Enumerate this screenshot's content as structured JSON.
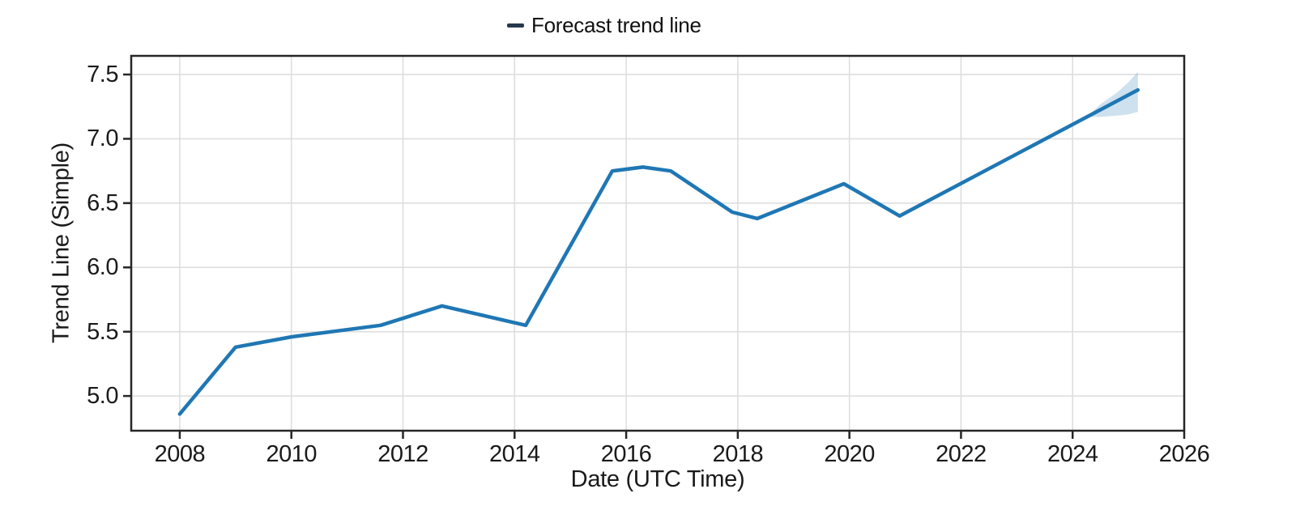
{
  "chart_data": {
    "type": "line",
    "title": "",
    "xlabel": "Date (UTC Time)",
    "ylabel": "Trend Line (Simple)",
    "legend": {
      "label": "Forecast trend line",
      "position": "top-center",
      "marker_color": "#24384e"
    },
    "xlim": [
      2007.13,
      2026
    ],
    "ylim": [
      4.73,
      7.645
    ],
    "xtick_labels": [
      "2008",
      "2010",
      "2012",
      "2014",
      "2016",
      "2018",
      "2020",
      "2022",
      "2024",
      "2026"
    ],
    "ytick_labels": [
      "5.0",
      "5.5",
      "6.0",
      "6.5",
      "7.0",
      "7.5"
    ],
    "grid": true,
    "series": [
      {
        "name": "Forecast trend line",
        "color": "#1f77b4",
        "line_width": 4.5,
        "points": [
          [
            2008.0,
            4.86
          ],
          [
            2009.0,
            5.38
          ],
          [
            2010.0,
            5.46
          ],
          [
            2011.6,
            5.55
          ],
          [
            2012.7,
            5.7
          ],
          [
            2014.2,
            5.55
          ],
          [
            2015.75,
            6.75
          ],
          [
            2016.3,
            6.78
          ],
          [
            2016.8,
            6.75
          ],
          [
            2017.9,
            6.43
          ],
          [
            2018.35,
            6.38
          ],
          [
            2019.9,
            6.65
          ],
          [
            2020.9,
            6.4
          ],
          [
            2025.17,
            7.38
          ]
        ]
      }
    ],
    "confidence_band": {
      "color": "#1f77b4",
      "opacity": 0.22,
      "upper": [
        [
          2024.25,
          7.17
        ],
        [
          2024.5,
          7.27
        ],
        [
          2024.8,
          7.36
        ],
        [
          2025.0,
          7.44
        ],
        [
          2025.17,
          7.52
        ]
      ],
      "lower": [
        [
          2024.25,
          7.17
        ],
        [
          2024.5,
          7.17
        ],
        [
          2024.8,
          7.18
        ],
        [
          2025.0,
          7.19
        ],
        [
          2025.17,
          7.21
        ]
      ]
    },
    "colors": {
      "grid": "#dcdcdc",
      "spine": "#262626",
      "tick": "#262626",
      "text": "#1a1a1a",
      "background": "#ffffff"
    }
  }
}
